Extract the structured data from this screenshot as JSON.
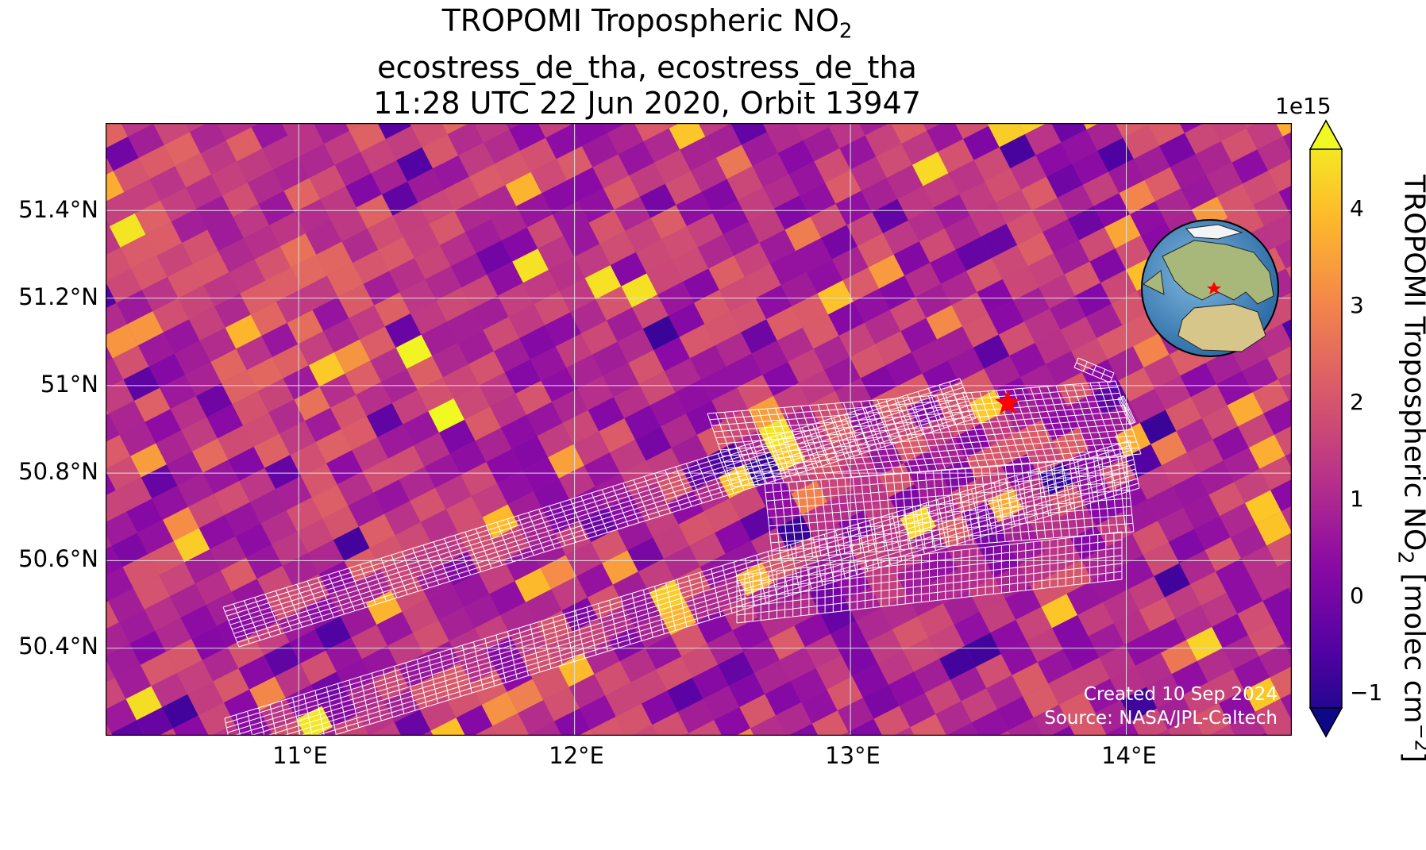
{
  "title": {
    "line1_main": "TROPOMI Tropospheric NO",
    "line1_sub": "2",
    "line2": "ecostress_de_tha, ecostress_de_tha",
    "line3": "11:28 UTC 22 Jun 2020, Orbit 13947"
  },
  "axes": {
    "lat_ticks": [
      "51.4°N",
      "51.2°N",
      "51°N",
      "50.8°N",
      "50.6°N",
      "50.4°N"
    ],
    "lon_ticks": [
      "11°E",
      "12°E",
      "13°E",
      "14°E"
    ]
  },
  "colorbar": {
    "exponent": "1e15",
    "ticks": [
      "4",
      "3",
      "2",
      "1",
      "0",
      "−1"
    ],
    "label_main": "TROPOMI Tropospheric NO",
    "label_sub": "2",
    "label_units_a": " [molec cm",
    "label_units_sup": "−2",
    "label_units_b": "]"
  },
  "credits": {
    "created": "Created 10 Sep 2024",
    "source": "Source: NASA/JPL-Caltech"
  },
  "colors": {
    "accent": "#ff0000",
    "grid": "#e0e0e0",
    "footprint": "#ffffff",
    "colormap": "plasma"
  },
  "map": {
    "projection": "PlateCarree",
    "extent_lon": [
      10.3,
      14.6
    ],
    "extent_lat": [
      50.2,
      51.6
    ],
    "grid_lon": [
      11,
      12,
      13,
      14
    ],
    "grid_lat": [
      50.4,
      50.6,
      50.8,
      51.0,
      51.2,
      51.4
    ],
    "marker": {
      "lon": 13.57,
      "lat": 50.96,
      "symbol": "star"
    },
    "inset": "orthographic globe centred on Europe with site marked"
  }
}
